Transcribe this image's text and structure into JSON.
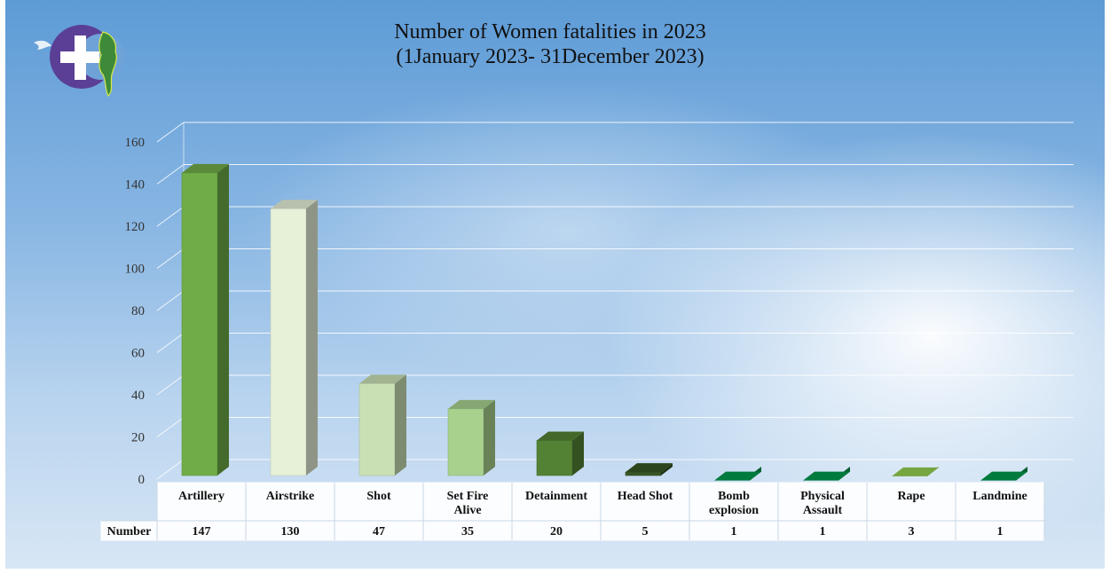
{
  "chart_data": {
    "type": "bar",
    "title_lines": [
      "Number of Women fatalities in 2023",
      "(1January 2023- 31December 2023)"
    ],
    "categories": [
      [
        "Artillery"
      ],
      [
        "Airstrike"
      ],
      [
        "Shot"
      ],
      [
        "Set Fire",
        "Alive"
      ],
      [
        "Detainment"
      ],
      [
        "Head Shot"
      ],
      [
        "Bomb",
        "explosion"
      ],
      [
        "Physical",
        "Assault"
      ],
      [
        "Rape"
      ],
      [
        "Landmine"
      ]
    ],
    "series": [
      {
        "name": "Number",
        "values": [
          147,
          130,
          47,
          35,
          20,
          5,
          1,
          1,
          3,
          1
        ]
      }
    ],
    "value_labels": [
      "147",
      "130",
      "47",
      "35",
      "20",
      "5",
      "1",
      "1",
      "3",
      "1"
    ],
    "bar_colors": [
      "#70ad47",
      "#e6f1d8",
      "#c9e0b4",
      "#a9d18e",
      "#548235",
      "#375623",
      "#00994c",
      "#00994c",
      "#92d050",
      "#00994c"
    ],
    "ylim": [
      0,
      160
    ],
    "yticks": [
      "0",
      "20",
      "40",
      "60",
      "80",
      "100",
      "120",
      "140",
      "160"
    ],
    "grid": true,
    "data_table": true
  },
  "logo": {
    "icon": "dove-cross-map-logo-icon",
    "colors": [
      "#5b3f96",
      "#ffffff",
      "#3c8a3a"
    ]
  }
}
